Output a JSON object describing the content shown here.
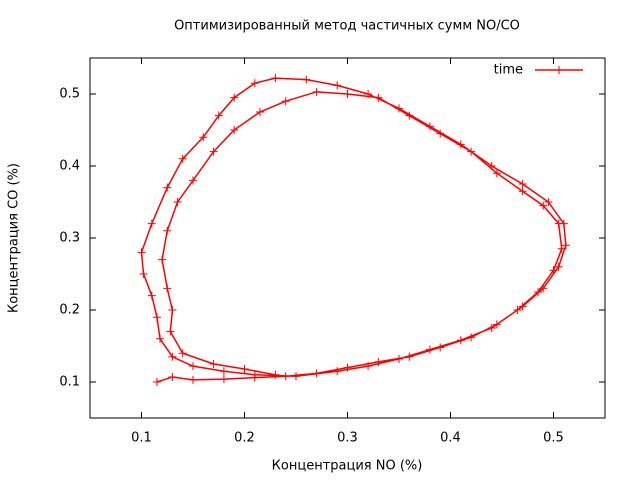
{
  "chart_data": {
    "type": "line",
    "title": "Оптимизированный метод частичных сумм NO/CO",
    "xlabel": "Концентрация NO (%)",
    "ylabel": "Концентрация CO (%)",
    "xlim": [
      0.05,
      0.55
    ],
    "ylim": [
      0.05,
      0.55
    ],
    "xticks": [
      0.1,
      0.2,
      0.3,
      0.4,
      0.5
    ],
    "yticks": [
      0.1,
      0.2,
      0.3,
      0.4,
      0.5
    ],
    "legend": "upper right",
    "series": [
      {
        "name": "time",
        "color": "#ff0000",
        "x": [
          0.115,
          0.13,
          0.15,
          0.18,
          0.21,
          0.24,
          0.27,
          0.3,
          0.33,
          0.36,
          0.39,
          0.42,
          0.445,
          0.47,
          0.49,
          0.505,
          0.512,
          0.51,
          0.495,
          0.47,
          0.44,
          0.41,
          0.38,
          0.35,
          0.32,
          0.29,
          0.26,
          0.23,
          0.21,
          0.19,
          0.175,
          0.16,
          0.14,
          0.125,
          0.11,
          0.1,
          0.102,
          0.11,
          0.115,
          0.118,
          0.13,
          0.15,
          0.18,
          0.21,
          0.25,
          0.29,
          0.32,
          0.35,
          0.38,
          0.41,
          0.44,
          0.465,
          0.485,
          0.5,
          0.508,
          0.505,
          0.49,
          0.47,
          0.445,
          0.42,
          0.39,
          0.36,
          0.33,
          0.3,
          0.27,
          0.24,
          0.215,
          0.19,
          0.17,
          0.15,
          0.135,
          0.125,
          0.12,
          0.125,
          0.13,
          0.128,
          0.14,
          0.17,
          0.2,
          0.23
        ],
        "values": [
          0.1,
          0.107,
          0.103,
          0.104,
          0.106,
          0.108,
          0.112,
          0.12,
          0.128,
          0.135,
          0.148,
          0.162,
          0.18,
          0.205,
          0.23,
          0.26,
          0.29,
          0.32,
          0.35,
          0.375,
          0.4,
          0.43,
          0.455,
          0.48,
          0.5,
          0.512,
          0.52,
          0.522,
          0.515,
          0.495,
          0.47,
          0.44,
          0.41,
          0.37,
          0.32,
          0.28,
          0.25,
          0.22,
          0.19,
          0.16,
          0.135,
          0.122,
          0.115,
          0.11,
          0.108,
          0.115,
          0.122,
          0.132,
          0.145,
          0.158,
          0.175,
          0.2,
          0.225,
          0.255,
          0.285,
          0.32,
          0.345,
          0.365,
          0.39,
          0.42,
          0.445,
          0.47,
          0.495,
          0.5,
          0.503,
          0.49,
          0.475,
          0.45,
          0.42,
          0.38,
          0.35,
          0.31,
          0.27,
          0.23,
          0.2,
          0.17,
          0.14,
          0.125,
          0.118,
          0.11
        ]
      }
    ]
  }
}
